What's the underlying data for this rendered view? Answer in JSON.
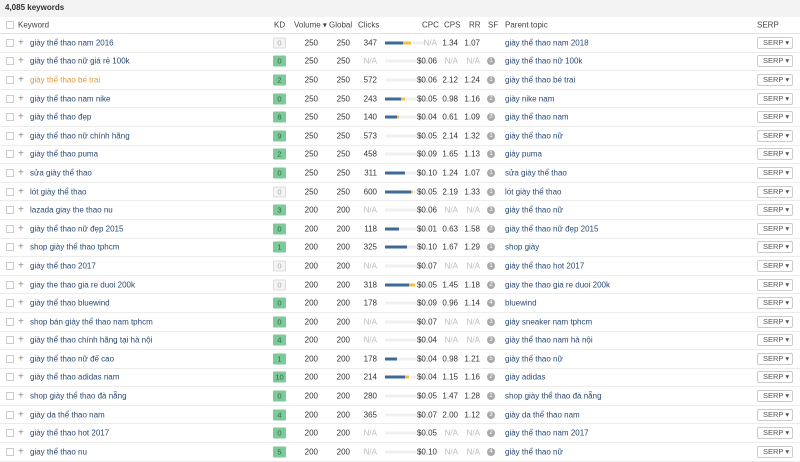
{
  "summary": "4,085 keywords",
  "headers": {
    "keyword": "Keyword",
    "kd": "KD",
    "volume": "Volume ▾",
    "global": "Global",
    "clicks": "Clicks",
    "cpc": "CPC",
    "cps": "CPS",
    "rr": "RR",
    "sf": "SF",
    "parent": "Parent topic",
    "serp": "SERP"
  },
  "colors": {
    "link": "#2a4a72",
    "visited": "#e09a3e",
    "kd_green": "#7dc99a",
    "bar_organic": "#3d6a99",
    "bar_paid": "#f0c040"
  },
  "serp_label": "SERP ▾",
  "rows": [
    {
      "kw": "giày thể thao nam 2016",
      "kd": "0",
      "vol": "250",
      "glob": "250",
      "clicks": "347",
      "bar": [
        0.45,
        0.2
      ],
      "cpc": "N/A",
      "cps": "1.34",
      "rr": "1.07",
      "sf": "",
      "pt": "giày thể thao nam 2018"
    },
    {
      "kw": "giày thể thao nữ giá rẻ 100k",
      "kd": "0",
      "vol": "250",
      "glob": "250",
      "clicks": "N/A",
      "bar": [
        0,
        0
      ],
      "cpc": "$0.06",
      "cps": "N/A",
      "rr": "N/A",
      "sf": "1",
      "pt": "giày thể thao nữ 100k"
    },
    {
      "kw": "giày thể thao bé trai",
      "kd": "2",
      "vol": "250",
      "glob": "250",
      "clicks": "572",
      "bar": [
        0,
        0
      ],
      "cpc": "$0.06",
      "cps": "2.12",
      "rr": "1.24",
      "sf": "1",
      "pt": "giày thể thao bé trai",
      "visited": true
    },
    {
      "kw": "giày thể thao nam nike",
      "kd": "0",
      "vol": "250",
      "glob": "250",
      "clicks": "243",
      "bar": [
        0.4,
        0.1
      ],
      "cpc": "$0.05",
      "cps": "0.98",
      "rr": "1.16",
      "sf": "2",
      "pt": "giày nike nam"
    },
    {
      "kw": "giày thể thao đẹp",
      "kd": "8",
      "vol": "250",
      "glob": "250",
      "clicks": "140",
      "bar": [
        0.3,
        0.05
      ],
      "cpc": "$0.04",
      "cps": "0.61",
      "rr": "1.09",
      "sf": "3",
      "pt": "giày thể thao nam"
    },
    {
      "kw": "giày thể thao nữ chính hãng",
      "kd": "9",
      "vol": "250",
      "glob": "250",
      "clicks": "573",
      "bar": [
        0,
        0
      ],
      "cpc": "$0.05",
      "cps": "2.14",
      "rr": "1.32",
      "sf": "1",
      "pt": "giày thể thao nữ"
    },
    {
      "kw": "giày thể thao puma",
      "kd": "2",
      "vol": "250",
      "glob": "250",
      "clicks": "458",
      "bar": [
        0,
        0
      ],
      "cpc": "$0.09",
      "cps": "1.65",
      "rr": "1.13",
      "sf": "1",
      "pt": "giày puma"
    },
    {
      "kw": "sửa giày thể thao",
      "kd": "0",
      "vol": "250",
      "glob": "250",
      "clicks": "311",
      "bar": [
        0.5,
        0
      ],
      "cpc": "$0.10",
      "cps": "1.24",
      "rr": "1.07",
      "sf": "1",
      "pt": "sửa giày thể thao"
    },
    {
      "kw": "lót giày thể thao",
      "kd": "0",
      "vol": "250",
      "glob": "250",
      "clicks": "600",
      "bar": [
        0.65,
        0.05
      ],
      "cpc": "$0.05",
      "cps": "2.19",
      "rr": "1.33",
      "sf": "1",
      "pt": "lót giày thể thao"
    },
    {
      "kw": "lazada giay the thao nu",
      "kd": "3",
      "vol": "200",
      "glob": "200",
      "clicks": "N/A",
      "bar": [
        0,
        0
      ],
      "cpc": "$0.06",
      "cps": "N/A",
      "rr": "N/A",
      "sf": "3",
      "pt": "giày thể thao nữ"
    },
    {
      "kw": "giày thể thao nữ đẹp 2015",
      "kd": "0",
      "vol": "200",
      "glob": "200",
      "clicks": "118",
      "bar": [
        0.35,
        0
      ],
      "cpc": "$0.01",
      "cps": "0.63",
      "rr": "1.58",
      "sf": "3",
      "pt": "giày thể thao nữ đẹp 2015"
    },
    {
      "kw": "shop giày thể thao tphcm",
      "kd": "1",
      "vol": "200",
      "glob": "200",
      "clicks": "325",
      "bar": [
        0.55,
        0
      ],
      "cpc": "$0.10",
      "cps": "1.67",
      "rr": "1.29",
      "sf": "1",
      "pt": "shop giày"
    },
    {
      "kw": "giày thể thao 2017",
      "kd": "0",
      "vol": "200",
      "glob": "200",
      "clicks": "N/A",
      "bar": [
        0,
        0
      ],
      "cpc": "$0.07",
      "cps": "N/A",
      "rr": "N/A",
      "sf": "1",
      "pt": "giày thể thao hot 2017"
    },
    {
      "kw": "giay the thao gia re duoi 200k",
      "kd": "0",
      "vol": "200",
      "glob": "200",
      "clicks": "318",
      "bar": [
        0.6,
        0.15
      ],
      "cpc": "$0.05",
      "cps": "1.45",
      "rr": "1.18",
      "sf": "2",
      "pt": "giay the thao gia re duoi 200k"
    },
    {
      "kw": "giày thể thao bluewind",
      "kd": "0",
      "vol": "200",
      "glob": "200",
      "clicks": "178",
      "bar": [
        0,
        0
      ],
      "cpc": "$0.09",
      "cps": "0.96",
      "rr": "1.14",
      "sf": "4",
      "pt": "bluewind"
    },
    {
      "kw": "shop bán giày thể thao nam tphcm",
      "kd": "0",
      "vol": "200",
      "glob": "200",
      "clicks": "N/A",
      "bar": [
        0,
        0
      ],
      "cpc": "$0.07",
      "cps": "N/A",
      "rr": "N/A",
      "sf": "3",
      "pt": "giày sneaker nam tphcm"
    },
    {
      "kw": "giày thể thao chính hãng tại hà nội",
      "kd": "4",
      "vol": "200",
      "glob": "200",
      "clicks": "N/A",
      "bar": [
        0,
        0
      ],
      "cpc": "$0.04",
      "cps": "N/A",
      "rr": "N/A",
      "sf": "3",
      "pt": "giày thể thao nam hà nội"
    },
    {
      "kw": "giày thể thao nữ đế cao",
      "kd": "1",
      "vol": "200",
      "glob": "200",
      "clicks": "178",
      "bar": [
        0.3,
        0
      ],
      "cpc": "$0.04",
      "cps": "0.98",
      "rr": "1.21",
      "sf": "5",
      "pt": "giày thể thao nữ"
    },
    {
      "kw": "giày thể thao adidas nam",
      "kd": "10",
      "vol": "200",
      "glob": "200",
      "clicks": "214",
      "bar": [
        0.5,
        0.1
      ],
      "cpc": "$0.04",
      "cps": "1.15",
      "rr": "1.16",
      "sf": "2",
      "pt": "giày adidas"
    },
    {
      "kw": "shop giày thể thao đà nẵng",
      "kd": "0",
      "vol": "200",
      "glob": "200",
      "clicks": "280",
      "bar": [
        0,
        0
      ],
      "cpc": "$0.05",
      "cps": "1.47",
      "rr": "1.28",
      "sf": "1",
      "pt": "shop giày thể thao đà nẵng"
    },
    {
      "kw": "giày da thể thao nam",
      "kd": "4",
      "vol": "200",
      "glob": "200",
      "clicks": "365",
      "bar": [
        0,
        0
      ],
      "cpc": "$0.07",
      "cps": "2.00",
      "rr": "1.12",
      "sf": "3",
      "pt": "giày da thể thao nam"
    },
    {
      "kw": "giày thể thao hot 2017",
      "kd": "0",
      "vol": "200",
      "glob": "200",
      "clicks": "N/A",
      "bar": [
        0,
        0
      ],
      "cpc": "$0.05",
      "cps": "N/A",
      "rr": "N/A",
      "sf": "2",
      "pt": "giày thể thao nam 2017"
    },
    {
      "kw": "giay thể thao nu",
      "kd": "5",
      "vol": "200",
      "glob": "200",
      "clicks": "N/A",
      "bar": [
        0,
        0
      ],
      "cpc": "$0.10",
      "cps": "N/A",
      "rr": "N/A",
      "sf": "4",
      "pt": "giày thể thao nữ"
    }
  ]
}
